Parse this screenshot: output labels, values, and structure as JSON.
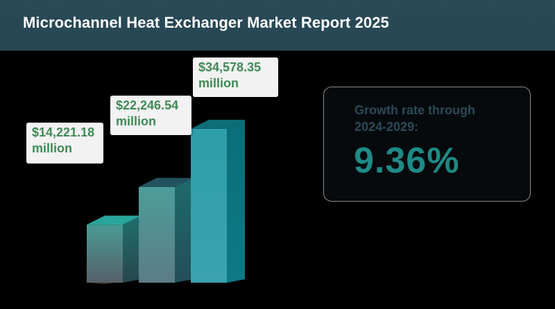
{
  "header": {
    "title": "Microchannel Heat Exchanger Market Report 2025"
  },
  "chart_data": {
    "type": "bar",
    "categories": [
      "",
      "",
      ""
    ],
    "values": [
      14221.18,
      22246.54,
      34578.35
    ],
    "labels": [
      {
        "value": "$14,221.18",
        "unit": " million"
      },
      {
        "value": "$22,246.54",
        "unit": "million"
      },
      {
        "value": "$34,578.35",
        "unit": "million"
      }
    ],
    "title": "",
    "xlabel": "",
    "ylabel": "",
    "grid": false,
    "colors": [
      "#4a8e8a",
      "#3e8c8c",
      "#2496a2"
    ]
  },
  "growth": {
    "label": "Growth rate through\n2024-2029:",
    "value": "9.36%"
  }
}
